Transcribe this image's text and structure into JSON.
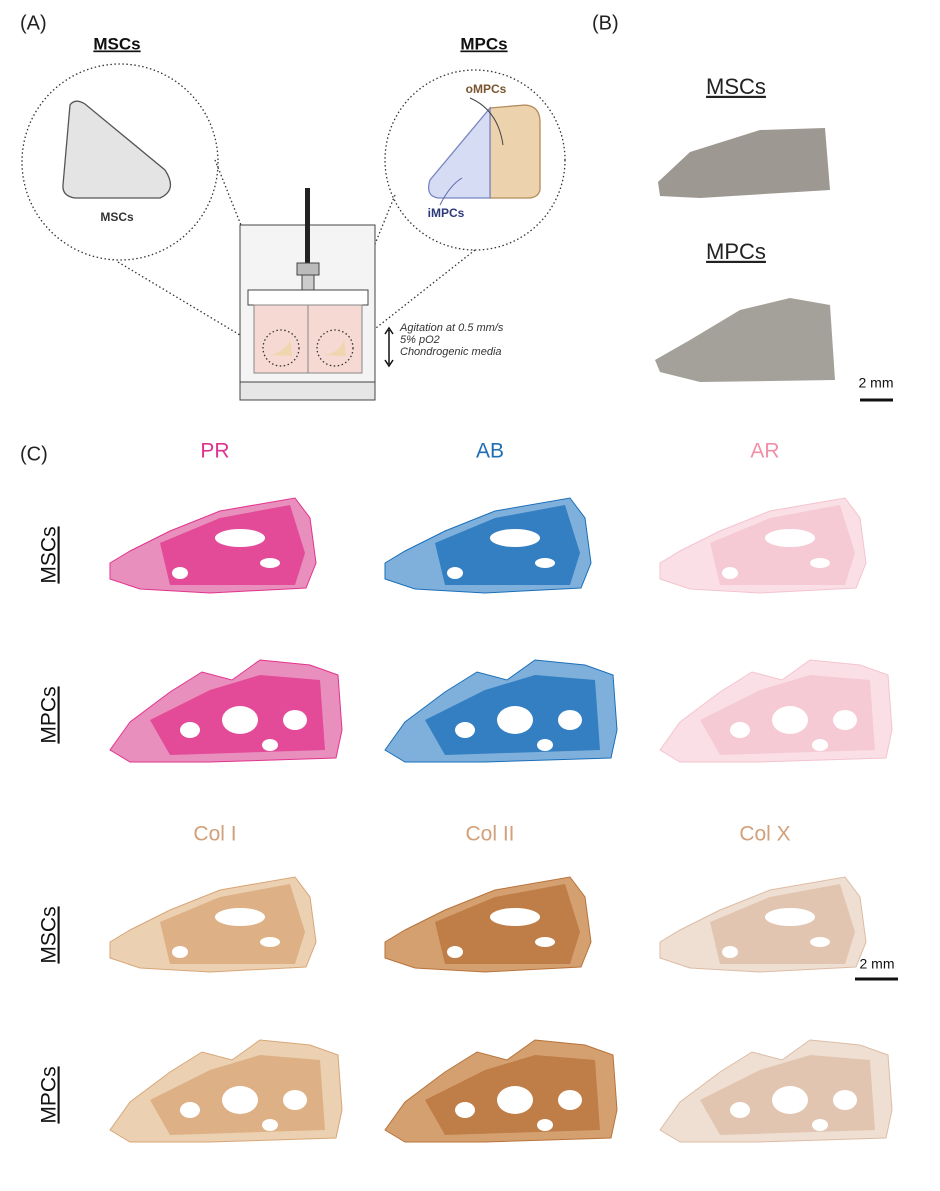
{
  "panel_a": {
    "label": "(A)",
    "left_title": "MSCs",
    "right_title": "MPCs",
    "left_shape_label": "MSCs",
    "outer_label": "oMPCs",
    "inner_label": "iMPCs",
    "conditions": [
      "Agitation at 0.5 mm/s",
      "5% pO2",
      "Chondrogenic media"
    ]
  },
  "panel_b": {
    "label": "(B)",
    "samples": [
      "MSCs",
      "MPCs"
    ],
    "scale_bar": "2 mm"
  },
  "panel_c": {
    "label": "(C)",
    "stains": [
      "PR",
      "AB",
      "AR",
      "Col I",
      "Col II",
      "Col X"
    ],
    "rows": [
      "MSCs",
      "MPCs",
      "MSCs",
      "MPCs"
    ],
    "scale_bar": "2 mm"
  }
}
